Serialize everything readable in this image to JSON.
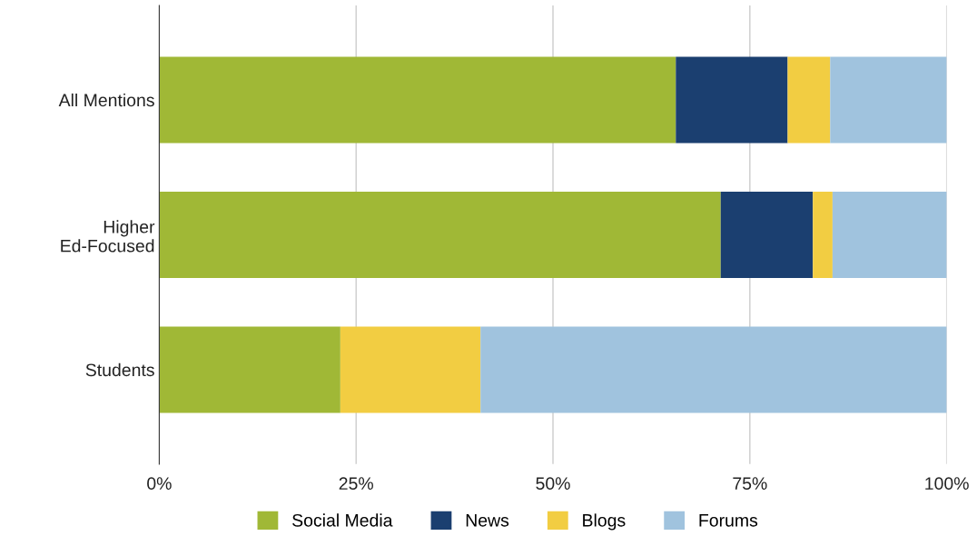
{
  "chart_data": {
    "type": "bar",
    "orientation": "horizontal",
    "stacked": true,
    "categories": [
      "All Mentions",
      "Higher\nEd-Focused",
      "Students"
    ],
    "series": [
      {
        "name": "Social Media",
        "color": "#a0b836",
        "values": [
          65.6,
          71.3,
          23.0
        ]
      },
      {
        "name": "News",
        "color": "#1b3f70",
        "values": [
          14.2,
          11.7,
          0
        ]
      },
      {
        "name": "Blogs",
        "color": "#f2cd42",
        "values": [
          5.4,
          2.5,
          17.8
        ]
      },
      {
        "name": "Forums",
        "color": "#a0c3de",
        "values": [
          14.8,
          14.5,
          59.2
        ]
      }
    ],
    "xlim": [
      0,
      100
    ],
    "xticks": [
      {
        "value": 0,
        "label": "0%"
      },
      {
        "value": 25,
        "label": "25%"
      },
      {
        "value": 50,
        "label": "50%"
      },
      {
        "value": 75,
        "label": "75%"
      },
      {
        "value": 100,
        "label": "100%"
      }
    ],
    "grid": "x",
    "legend": "bottom"
  }
}
